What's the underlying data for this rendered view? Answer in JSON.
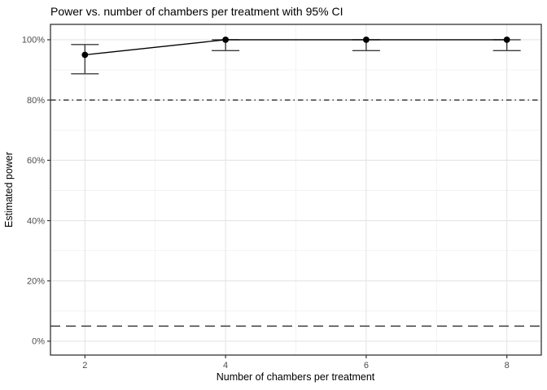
{
  "chart_data": {
    "type": "line",
    "title": "Power vs. number of chambers per treatment with 95% CI",
    "xlabel": "Number of chambers per treatment",
    "ylabel": "Estimated power",
    "x": [
      2,
      4,
      6,
      8
    ],
    "series": [
      {
        "name": "Estimated power",
        "values": [
          95,
          100,
          100,
          100
        ],
        "ci_lower": [
          88.7,
          96.4,
          96.4,
          96.4
        ],
        "ci_upper": [
          98.4,
          100,
          100,
          100
        ]
      }
    ],
    "reference_lines": [
      {
        "y": 80,
        "linetype": "dotdash"
      },
      {
        "y": 5,
        "linetype": "dashed"
      }
    ],
    "x_ticks": [
      2,
      4,
      6,
      8
    ],
    "x_tick_labels": [
      "2",
      "4",
      "6",
      "8"
    ],
    "x_minor": [
      3,
      5,
      7
    ],
    "y_ticks": [
      0,
      20,
      40,
      60,
      80,
      100
    ],
    "y_tick_labels": [
      "0%",
      "20%",
      "40%",
      "60%",
      "80%",
      "100%"
    ],
    "y_minor": [
      10,
      30,
      50,
      70,
      90
    ],
    "xlim": [
      1.51,
      8.49
    ],
    "ylim": [
      -4.6,
      105.1
    ],
    "grid": true,
    "legend": "none",
    "colors": {
      "background": "#ffffff",
      "panel_background": "#ffffff",
      "grid_major": "#e5e5e5",
      "grid_minor": "#f0f0f0",
      "panel_border": "#333333",
      "tick": "#333333",
      "axis_text": "#4d4d4d",
      "title_text": "#000000",
      "point": "#000000",
      "line": "#000000",
      "errorbar": "#3d3d3d",
      "reference": "#3c3c3c"
    }
  }
}
